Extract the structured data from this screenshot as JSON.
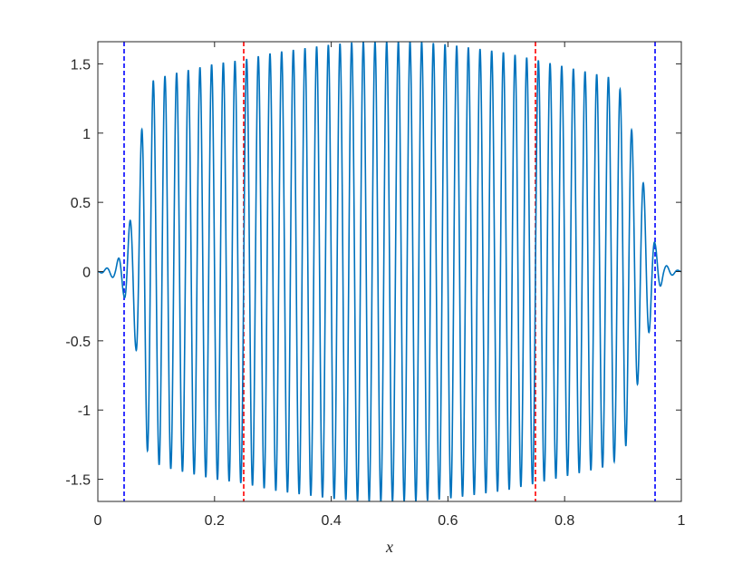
{
  "chart_data": {
    "type": "line",
    "title": "",
    "xlabel": "x",
    "ylabel": "",
    "xlim": [
      0,
      1
    ],
    "ylim": [
      -1.66,
      1.66
    ],
    "grid": false,
    "x_ticks": [
      0,
      0.2,
      0.4,
      0.6,
      0.8,
      1
    ],
    "x_tick_labels": [
      "0",
      "0.2",
      "0.4",
      "0.6",
      "0.8",
      "1"
    ],
    "y_ticks": [
      -1.5,
      -1,
      -0.5,
      0,
      0.5,
      1,
      1.5
    ],
    "y_tick_labels": [
      "-1.5",
      "-1",
      "-0.5",
      "0",
      "0.5",
      "1",
      "1.5"
    ],
    "series": [
      {
        "color": "#0072BD",
        "kind": "oscillating signal",
        "frequency_cycles_per_unit": 50,
        "envelope_x": [
          0,
          0.03,
          0.045,
          0.065,
          0.08,
          0.095,
          0.12,
          0.2,
          0.25,
          0.3,
          0.4,
          0.45,
          0.5,
          0.55,
          0.6,
          0.7,
          0.75,
          0.8,
          0.88,
          0.905,
          0.92,
          0.94,
          0.955,
          0.97,
          1
        ],
        "envelope_y": [
          0,
          0.05,
          0.18,
          0.55,
          1.25,
          1.38,
          1.42,
          1.5,
          1.53,
          1.58,
          1.64,
          1.66,
          1.66,
          1.66,
          1.64,
          1.58,
          1.53,
          1.48,
          1.4,
          1.26,
          0.9,
          0.55,
          0.2,
          0.05,
          0
        ]
      }
    ],
    "vertical_lines": [
      {
        "x": 0.045,
        "color": "#0000ff",
        "style": "dashed"
      },
      {
        "x": 0.955,
        "color": "#0000ff",
        "style": "dashed"
      },
      {
        "x": 0.25,
        "color": "#ff0000",
        "style": "dashed"
      },
      {
        "x": 0.75,
        "color": "#ff0000",
        "style": "dashed"
      }
    ]
  }
}
